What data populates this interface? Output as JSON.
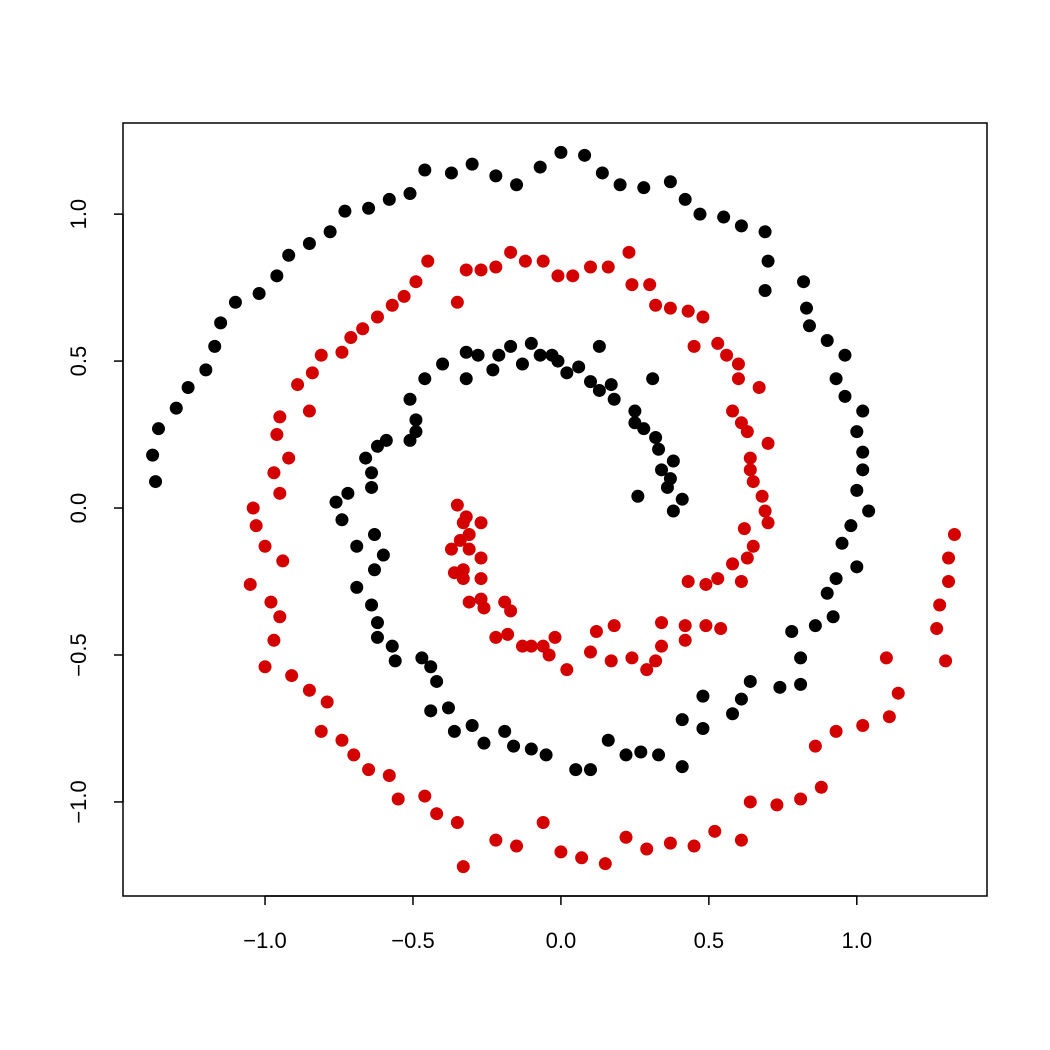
{
  "chart_data": {
    "type": "scatter",
    "xlim": [
      -1.48,
      1.44
    ],
    "ylim": [
      -1.32,
      1.31
    ],
    "xticks": [
      {
        "value": -1,
        "label": "−1.0"
      },
      {
        "value": -0.5,
        "label": "−0.5"
      },
      {
        "value": 0,
        "label": "0.0"
      },
      0.5,
      {
        "value": 1,
        "label": "1.0"
      }
    ],
    "yticks": [
      {
        "value": -1,
        "label": "−1.0"
      },
      {
        "value": -0.5,
        "label": "−0.5"
      },
      {
        "value": 0,
        "label": "0.0"
      },
      0.5,
      {
        "value": 1,
        "label": "1.0"
      }
    ],
    "series": [
      {
        "color": "#000000",
        "x": [
          -1.37,
          -1.38,
          -1.36,
          -1.3,
          -1.26,
          -1.2,
          -1.17,
          -1.15,
          -1.1,
          -1.02,
          -0.96,
          -0.92,
          -0.85,
          -0.78,
          -0.73,
          -0.65,
          -0.58,
          -0.51,
          -0.46,
          -0.37,
          -0.3,
          -0.22,
          -0.15,
          -0.07,
          0.0,
          0.08,
          0.14,
          0.2,
          0.28,
          0.37,
          0.42,
          0.47,
          0.55,
          0.61,
          0.69,
          0.7,
          0.69,
          0.82,
          0.83,
          0.84,
          0.9,
          0.96,
          0.93,
          0.96,
          1.02,
          1.0,
          1.02,
          1.02,
          1.0,
          1.04,
          0.98,
          0.95,
          1.0,
          0.93,
          0.9,
          0.92,
          0.86,
          0.78,
          0.81,
          0.81,
          0.74,
          0.64,
          0.61,
          0.58,
          0.48,
          0.48,
          0.41,
          0.41,
          0.33,
          0.27,
          0.22,
          0.16,
          0.1,
          0.05,
          -0.05,
          -0.1,
          -0.16,
          -0.19,
          -0.26,
          -0.3,
          -0.36,
          -0.38,
          -0.44,
          -0.42,
          -0.44,
          -0.47,
          -0.56,
          -0.57,
          -0.62,
          -0.62,
          -0.64,
          -0.69,
          -0.63,
          -0.6,
          -0.63,
          -0.69,
          -0.74,
          -0.76,
          -0.72,
          -0.64,
          -0.64,
          -0.66,
          -0.62,
          -0.59,
          -0.51,
          -0.49,
          -0.49,
          -0.51,
          -0.46,
          -0.4,
          -0.32,
          -0.32,
          -0.28,
          -0.23,
          -0.21,
          -0.17,
          -0.13,
          -0.1,
          -0.07,
          -0.03,
          -0.01,
          0.02,
          0.06,
          0.1,
          0.13,
          0.13,
          0.17,
          0.18,
          0.25,
          0.25,
          0.28,
          0.31,
          0.32,
          0.33,
          0.34,
          0.38,
          0.37,
          0.36,
          0.41,
          0.38,
          0.26
        ],
        "values": [
          0.09,
          0.18,
          0.27,
          0.34,
          0.41,
          0.47,
          0.55,
          0.63,
          0.7,
          0.73,
          0.79,
          0.86,
          0.9,
          0.94,
          1.01,
          1.02,
          1.05,
          1.07,
          1.15,
          1.14,
          1.17,
          1.13,
          1.1,
          1.16,
          1.21,
          1.2,
          1.14,
          1.1,
          1.09,
          1.11,
          1.05,
          1.0,
          0.99,
          0.96,
          0.94,
          0.84,
          0.74,
          0.77,
          0.68,
          0.62,
          0.57,
          0.52,
          0.44,
          0.38,
          0.33,
          0.26,
          0.19,
          0.13,
          0.06,
          -0.01,
          -0.06,
          -0.12,
          -0.2,
          -0.24,
          -0.29,
          -0.37,
          -0.4,
          -0.42,
          -0.51,
          -0.6,
          -0.61,
          -0.59,
          -0.65,
          -0.7,
          -0.75,
          -0.64,
          -0.72,
          -0.88,
          -0.84,
          -0.83,
          -0.84,
          -0.79,
          -0.89,
          -0.89,
          -0.84,
          -0.82,
          -0.81,
          -0.76,
          -0.8,
          -0.74,
          -0.76,
          -0.68,
          -0.69,
          -0.59,
          -0.54,
          -0.51,
          -0.52,
          -0.47,
          -0.44,
          -0.39,
          -0.33,
          -0.27,
          -0.21,
          -0.16,
          -0.09,
          -0.13,
          -0.04,
          0.02,
          0.05,
          0.07,
          0.12,
          0.17,
          0.21,
          0.23,
          0.23,
          0.26,
          0.3,
          0.37,
          0.44,
          0.49,
          0.44,
          0.53,
          0.52,
          0.47,
          0.52,
          0.55,
          0.49,
          0.56,
          0.52,
          0.52,
          0.5,
          0.46,
          0.48,
          0.43,
          0.55,
          0.4,
          0.42,
          0.37,
          0.33,
          0.29,
          0.27,
          0.44,
          0.24,
          0.2,
          0.13,
          0.16,
          0.1,
          0.07,
          0.03,
          -0.01,
          0.04
        ]
      },
      {
        "color": "#d40000",
        "x": [
          1.33,
          1.31,
          1.31,
          1.28,
          1.27,
          1.3,
          1.1,
          1.14,
          1.11,
          1.02,
          0.93,
          0.86,
          0.88,
          0.81,
          0.73,
          0.64,
          0.61,
          0.52,
          0.45,
          0.37,
          0.29,
          0.22,
          0.15,
          0.07,
          0.0,
          -0.06,
          -0.15,
          -0.22,
          -0.33,
          -0.35,
          -0.42,
          -0.46,
          -0.55,
          -0.58,
          -0.65,
          -0.7,
          -0.74,
          -0.81,
          -0.79,
          -0.85,
          -0.91,
          -1.0,
          -0.97,
          -0.95,
          -0.98,
          -0.94,
          -1.05,
          -1.0,
          -1.03,
          -1.04,
          -0.95,
          -0.97,
          -0.92,
          -0.96,
          -0.95,
          -0.85,
          -0.89,
          -0.84,
          -0.81,
          -0.74,
          -0.71,
          -0.67,
          -0.62,
          -0.57,
          -0.53,
          -0.49,
          -0.45,
          -0.35,
          -0.32,
          -0.27,
          -0.22,
          -0.17,
          -0.12,
          -0.06,
          -0.01,
          0.04,
          0.1,
          0.16,
          0.23,
          0.24,
          0.3,
          0.32,
          0.37,
          0.43,
          0.48,
          0.45,
          0.53,
          0.56,
          0.6,
          0.6,
          0.67,
          0.58,
          0.61,
          0.63,
          0.7,
          0.64,
          0.64,
          0.65,
          0.68,
          0.69,
          0.7,
          0.62,
          0.65,
          0.63,
          0.58,
          0.61,
          0.53,
          0.49,
          0.43,
          0.54,
          0.49,
          0.42,
          0.42,
          0.34,
          0.34,
          0.32,
          0.29,
          0.24,
          0.17,
          0.1,
          0.18,
          0.12,
          0.02,
          -0.04,
          -0.02,
          -0.06,
          -0.1,
          -0.13,
          -0.18,
          -0.22,
          -0.17,
          -0.19,
          -0.26,
          -0.27,
          -0.31,
          -0.27,
          -0.33,
          -0.36,
          -0.27,
          -0.33,
          -0.37,
          -0.31,
          -0.34,
          -0.31,
          -0.27,
          -0.33,
          -0.32,
          -0.35
        ],
        "values": [
          -0.09,
          -0.17,
          -0.25,
          -0.33,
          -0.41,
          -0.52,
          -0.51,
          -0.63,
          -0.71,
          -0.74,
          -0.76,
          -0.81,
          -0.95,
          -0.99,
          -1.01,
          -1.0,
          -1.13,
          -1.1,
          -1.15,
          -1.14,
          -1.16,
          -1.12,
          -1.21,
          -1.19,
          -1.17,
          -1.07,
          -1.15,
          -1.13,
          -1.22,
          -1.07,
          -1.04,
          -0.98,
          -0.99,
          -0.91,
          -0.89,
          -0.84,
          -0.79,
          -0.76,
          -0.66,
          -0.62,
          -0.57,
          -0.54,
          -0.45,
          -0.37,
          -0.32,
          -0.18,
          -0.26,
          -0.13,
          -0.06,
          0.0,
          0.05,
          0.12,
          0.17,
          0.25,
          0.31,
          0.33,
          0.42,
          0.46,
          0.52,
          0.53,
          0.58,
          0.61,
          0.65,
          0.69,
          0.72,
          0.77,
          0.84,
          0.7,
          0.81,
          0.81,
          0.82,
          0.87,
          0.84,
          0.84,
          0.79,
          0.79,
          0.82,
          0.82,
          0.87,
          0.76,
          0.76,
          0.69,
          0.68,
          0.67,
          0.65,
          0.55,
          0.56,
          0.52,
          0.49,
          0.44,
          0.41,
          0.33,
          0.29,
          0.26,
          0.22,
          0.17,
          0.13,
          0.09,
          0.04,
          -0.01,
          -0.05,
          -0.07,
          -0.13,
          -0.17,
          -0.19,
          -0.25,
          -0.24,
          -0.26,
          -0.25,
          -0.41,
          -0.4,
          -0.4,
          -0.45,
          -0.39,
          -0.47,
          -0.52,
          -0.55,
          -0.51,
          -0.52,
          -0.49,
          -0.4,
          -0.42,
          -0.55,
          -0.5,
          -0.44,
          -0.47,
          -0.47,
          -0.47,
          -0.43,
          -0.44,
          -0.35,
          -0.32,
          -0.34,
          -0.31,
          -0.32,
          -0.24,
          -0.24,
          -0.22,
          -0.17,
          -0.21,
          -0.14,
          -0.14,
          -0.11,
          -0.09,
          -0.05,
          -0.05,
          -0.03,
          0.01
        ]
      }
    ]
  }
}
